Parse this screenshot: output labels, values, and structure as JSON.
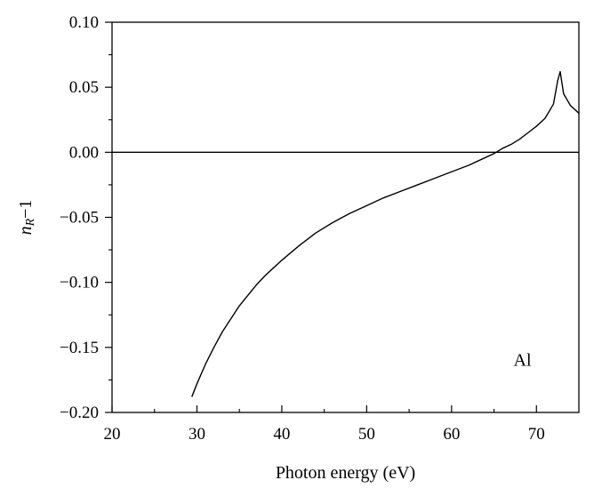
{
  "chart_data": {
    "type": "line",
    "title": "",
    "xlabel": "Photon energy (eV)",
    "ylabel_main": "n",
    "ylabel_sub": "R",
    "ylabel_tail": "−1",
    "xlim": [
      20,
      75
    ],
    "ylim": [
      -0.2,
      0.1
    ],
    "x_ticks": [
      20,
      30,
      40,
      50,
      60,
      70
    ],
    "x_tick_labels": [
      "20",
      "30",
      "40",
      "50",
      "60",
      "70"
    ],
    "y_ticks": [
      0.1,
      0.05,
      0.0,
      -0.05,
      -0.1,
      -0.15,
      -0.2
    ],
    "y_tick_labels": [
      "0.10",
      "0.05",
      "0.00",
      "−0.05",
      "−0.10",
      "−0.15",
      "−0.20"
    ],
    "grid": false,
    "reference_line_y": 0,
    "annotation": "Al",
    "series": [
      {
        "x": [
          29.4,
          30,
          31,
          32,
          33,
          34,
          35,
          36,
          37,
          38,
          39,
          40,
          42,
          44,
          46,
          48,
          50,
          52,
          54,
          56,
          58,
          60,
          62,
          64,
          65,
          66,
          67,
          68,
          69,
          70,
          71,
          72,
          72.5,
          72.8,
          73.2,
          74,
          75
        ],
        "y": [
          -0.188,
          -0.178,
          -0.163,
          -0.15,
          -0.138,
          -0.128,
          -0.118,
          -0.11,
          -0.102,
          -0.095,
          -0.089,
          -0.083,
          -0.072,
          -0.062,
          -0.054,
          -0.047,
          -0.041,
          -0.035,
          -0.03,
          -0.025,
          -0.02,
          -0.015,
          -0.01,
          -0.004,
          -0.001,
          0.003,
          0.006,
          0.01,
          0.015,
          0.02,
          0.026,
          0.037,
          0.055,
          0.062,
          0.045,
          0.036,
          0.03
        ]
      }
    ]
  }
}
